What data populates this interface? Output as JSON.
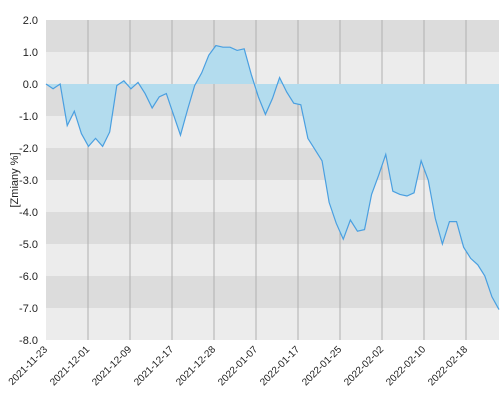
{
  "chart_data": {
    "type": "area",
    "ylabel": "[Zmiany %]",
    "ylim": [
      -8.0,
      2.0
    ],
    "y_ticks": [
      "2.0",
      "1.0",
      "0.0",
      "-1.0",
      "-2.0",
      "-3.0",
      "-4.0",
      "-5.0",
      "-6.0",
      "-7.0",
      "-8.0"
    ],
    "x_ticks": [
      "2021-11-23",
      "2021-12-01",
      "2021-12-09",
      "2021-12-17",
      "2021-12-28",
      "2022-01-07",
      "2022-01-17",
      "2022-01-25",
      "2022-02-02",
      "2022-02-10",
      "2022-02-18"
    ],
    "grid": true,
    "values": [
      0.0,
      -0.15,
      0.0,
      -1.3,
      -0.85,
      -1.55,
      -1.95,
      -1.7,
      -1.95,
      -1.5,
      -0.05,
      0.1,
      -0.15,
      0.05,
      -0.3,
      -0.75,
      -0.4,
      -0.3,
      -0.95,
      -1.6,
      -0.8,
      -0.05,
      0.35,
      0.9,
      1.2,
      1.15,
      1.15,
      1.05,
      1.1,
      0.3,
      -0.4,
      -0.95,
      -0.45,
      0.2,
      -0.25,
      -0.6,
      -0.65,
      -1.7,
      -2.05,
      -2.4,
      -3.7,
      -4.35,
      -4.85,
      -4.25,
      -4.6,
      -4.55,
      -3.45,
      -2.85,
      -2.2,
      -3.35,
      -3.45,
      -3.5,
      -3.4,
      -2.4,
      -3.0,
      -4.2,
      -5.0,
      -4.3,
      -4.3,
      -5.1,
      -5.45,
      -5.65,
      -6.0,
      -6.65,
      -7.05
    ]
  }
}
